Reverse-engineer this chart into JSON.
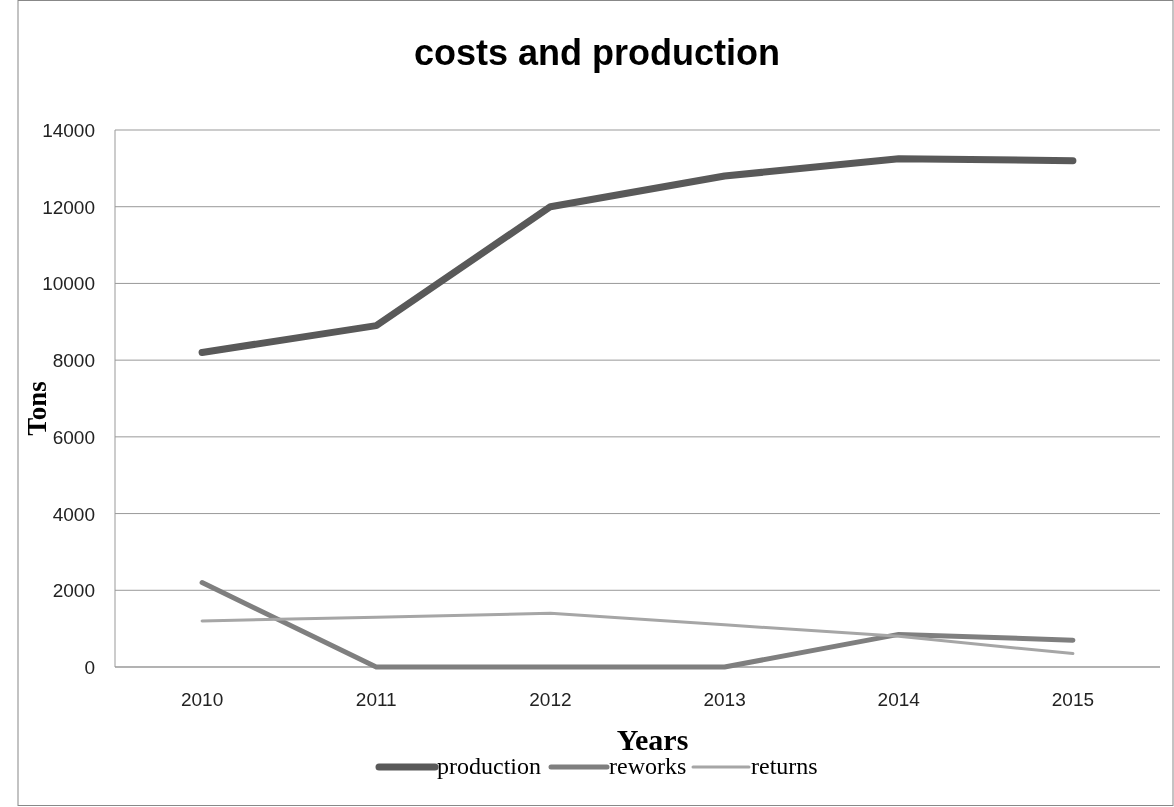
{
  "chart_data": {
    "type": "line",
    "title": "costs and production",
    "xlabel": "Years",
    "ylabel": "Tons",
    "categories": [
      "2010",
      "2011",
      "2012",
      "2013",
      "2014",
      "2015"
    ],
    "series": [
      {
        "name": "production",
        "color": "#595959",
        "values": [
          8200,
          8900,
          12000,
          12800,
          13250,
          13200
        ]
      },
      {
        "name": "reworks",
        "color": "#7f7f7f",
        "values": [
          2200,
          0,
          0,
          0,
          850,
          700
        ]
      },
      {
        "name": "returns",
        "color": "#a6a6a6",
        "values": [
          1200,
          1300,
          1400,
          1100,
          800,
          350
        ]
      }
    ],
    "ylim": [
      0,
      14000
    ],
    "yticks": [
      0,
      2000,
      4000,
      6000,
      8000,
      10000,
      12000,
      14000
    ],
    "grid": "y",
    "legend": "bottom",
    "marker": "none",
    "line_style": "solid"
  }
}
